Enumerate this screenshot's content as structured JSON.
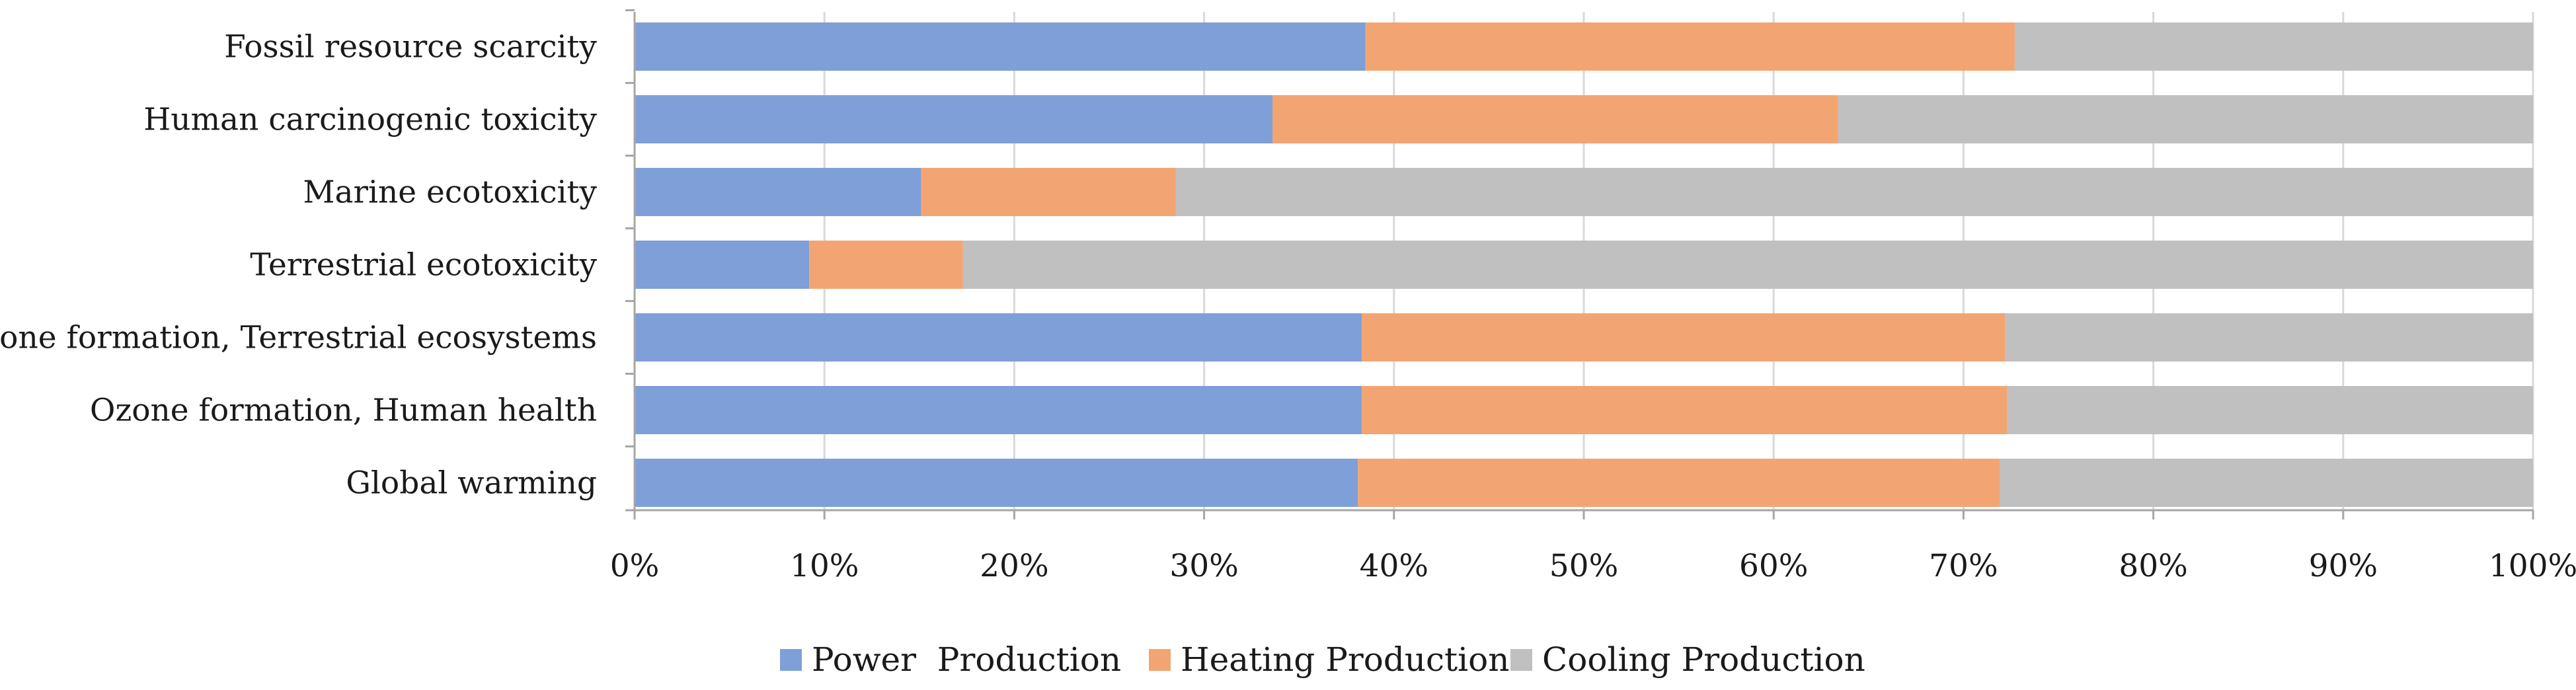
{
  "chart_data": {
    "type": "bar",
    "orientation": "horizontal",
    "stacked": "percent",
    "title": "",
    "xlabel": "",
    "ylabel": "",
    "xlim": [
      0,
      100
    ],
    "grid": true,
    "legend_position": "bottom",
    "categories": [
      "Fossil resource scarcity",
      "Human carcinogenic toxicity",
      "Marine ecotoxicity",
      "Terrestrial ecotoxicity",
      "Ozone formation, Terrestrial ecosystems",
      "Ozone formation, Human health",
      "Global warming"
    ],
    "x_tick_labels": [
      "0%",
      "10%",
      "20%",
      "30%",
      "40%",
      "50%",
      "60%",
      "70%",
      "80%",
      "90%",
      "100%"
    ],
    "series": [
      {
        "name": "Power  Production",
        "color": "#7f9fd8",
        "values": [
          38.5,
          33.6,
          15.1,
          9.2,
          38.3,
          38.3,
          38.1
        ]
      },
      {
        "name": "Heating Production",
        "color": "#f2a572",
        "values": [
          34.2,
          29.8,
          13.4,
          8.1,
          33.9,
          34.0,
          33.8
        ]
      },
      {
        "name": "Cooling Production",
        "color": "#c0c0c0",
        "values": [
          27.3,
          36.6,
          71.5,
          82.7,
          27.8,
          27.7,
          28.1
        ]
      }
    ]
  }
}
